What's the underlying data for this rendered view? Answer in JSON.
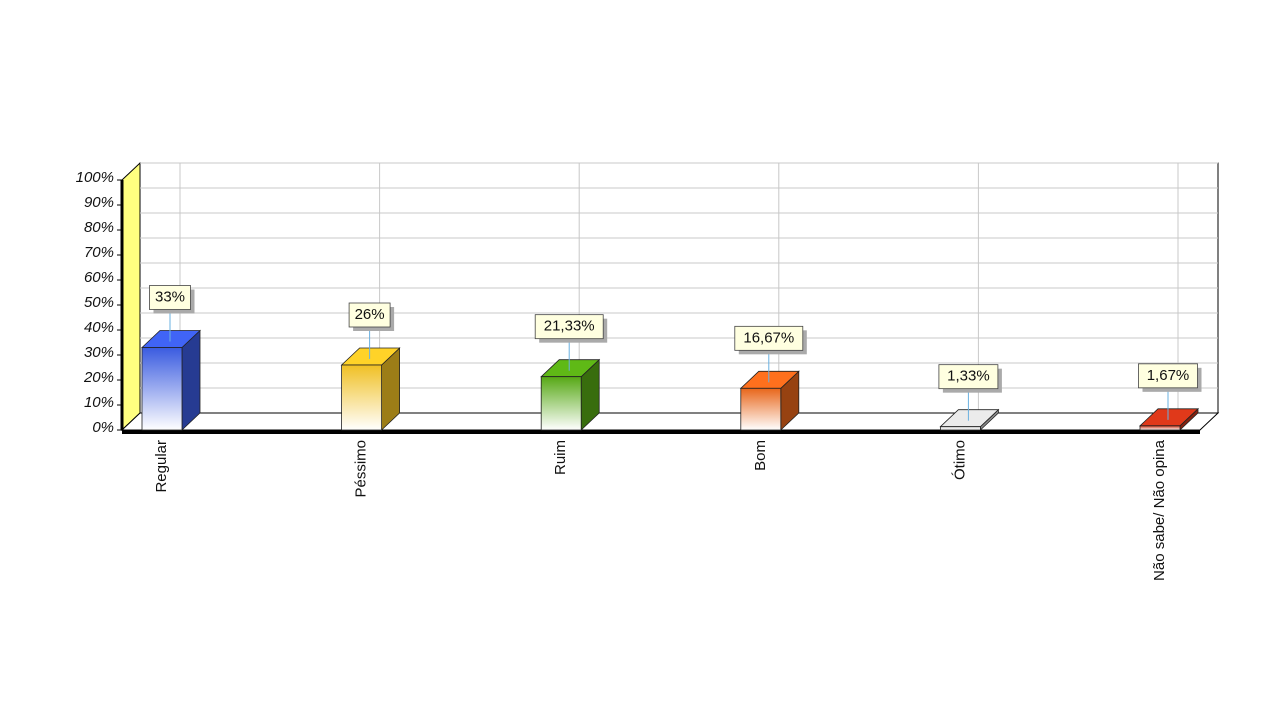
{
  "chart_data": {
    "type": "bar3d",
    "categories": [
      "Regular",
      "Péssimo",
      "Ruim",
      "Bom",
      "Ótimo",
      "Não sabe/ Não opina"
    ],
    "values": [
      33,
      26,
      21.33,
      16.67,
      1.33,
      1.67
    ],
    "value_labels": [
      "33%",
      "26%",
      "21,33%",
      "16,67%",
      "1,33%",
      "1,67%"
    ],
    "colors": [
      "#3a5be0",
      "#f0c024",
      "#56a814",
      "#e8661a",
      "#d6d6d6",
      "#cc3418"
    ],
    "ylim": [
      0,
      100
    ],
    "yticks": [
      {
        "value": 0,
        "label": "0%"
      },
      {
        "value": 10,
        "label": "10%"
      },
      {
        "value": 20,
        "label": "20%"
      },
      {
        "value": 30,
        "label": "30%"
      },
      {
        "value": 40,
        "label": "40%"
      },
      {
        "value": 50,
        "label": "50%"
      },
      {
        "value": 60,
        "label": "60%"
      },
      {
        "value": 70,
        "label": "70%"
      },
      {
        "value": 80,
        "label": "80%"
      },
      {
        "value": 90,
        "label": "90%"
      },
      {
        "value": 100,
        "label": "100%"
      }
    ],
    "grid": true
  }
}
